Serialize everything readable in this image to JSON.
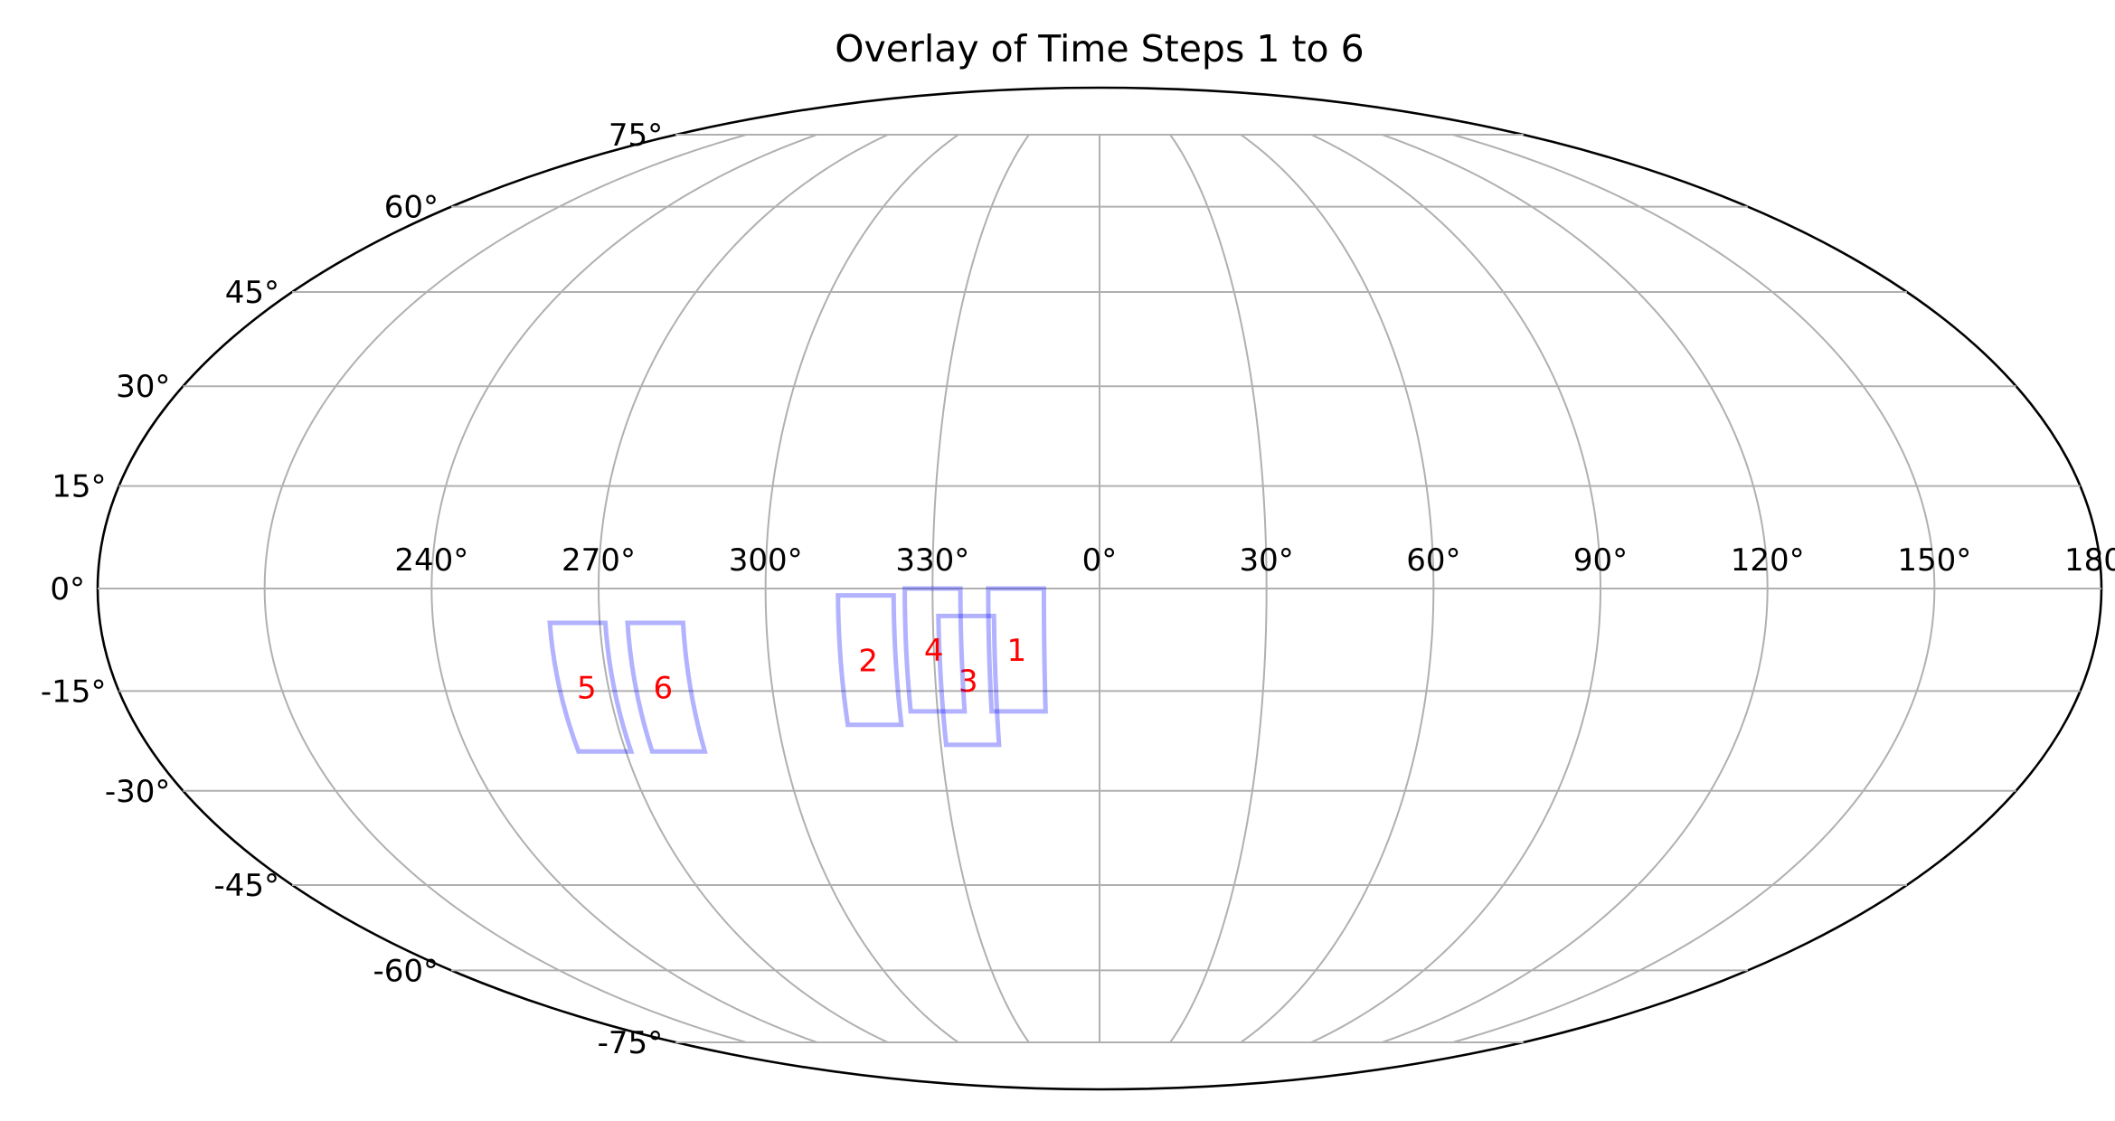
{
  "chart_data": {
    "type": "scatter",
    "projection": "mollweide",
    "title": "Overlay of Time Steps 1 to 6",
    "grid": true,
    "xticks": {
      "values": [
        240,
        270,
        300,
        330,
        0,
        30,
        60,
        90,
        120,
        150,
        180
      ],
      "labels": [
        "240°",
        "270°",
        "300°",
        "330°",
        "0°",
        "30°",
        "60°",
        "90°",
        "120°",
        "150°",
        "180°"
      ]
    },
    "yticks": {
      "values": [
        75,
        60,
        45,
        30,
        15,
        0,
        -15,
        -30,
        -45,
        -60,
        -75
      ],
      "labels": [
        "75°",
        "60°",
        "45°",
        "30°",
        "15°",
        "0°",
        "-15°",
        "-30°",
        "-45°",
        "-60°",
        "-75°"
      ]
    },
    "colors": {
      "footprint": "#0000ff",
      "label": "#ff0000",
      "grid": "#b0b0b0",
      "boundary": "#000000"
    },
    "series": [
      {
        "label": "1",
        "lon_range": [
          340,
          350
        ],
        "lat_range": [
          -18,
          0
        ]
      },
      {
        "label": "2",
        "lon_range": [
          313,
          323
        ],
        "lat_range": [
          -20,
          -1
        ]
      },
      {
        "label": "3",
        "lon_range": [
          331,
          341
        ],
        "lat_range": [
          -23,
          -4
        ]
      },
      {
        "label": "4",
        "lon_range": [
          325,
          335
        ],
        "lat_range": [
          -18,
          0
        ]
      },
      {
        "label": "5",
        "lon_range": [
          261,
          271
        ],
        "lat_range": [
          -24,
          -5
        ]
      },
      {
        "label": "6",
        "lon_range": [
          275,
          285
        ],
        "lat_range": [
          -24,
          -5
        ]
      }
    ]
  }
}
